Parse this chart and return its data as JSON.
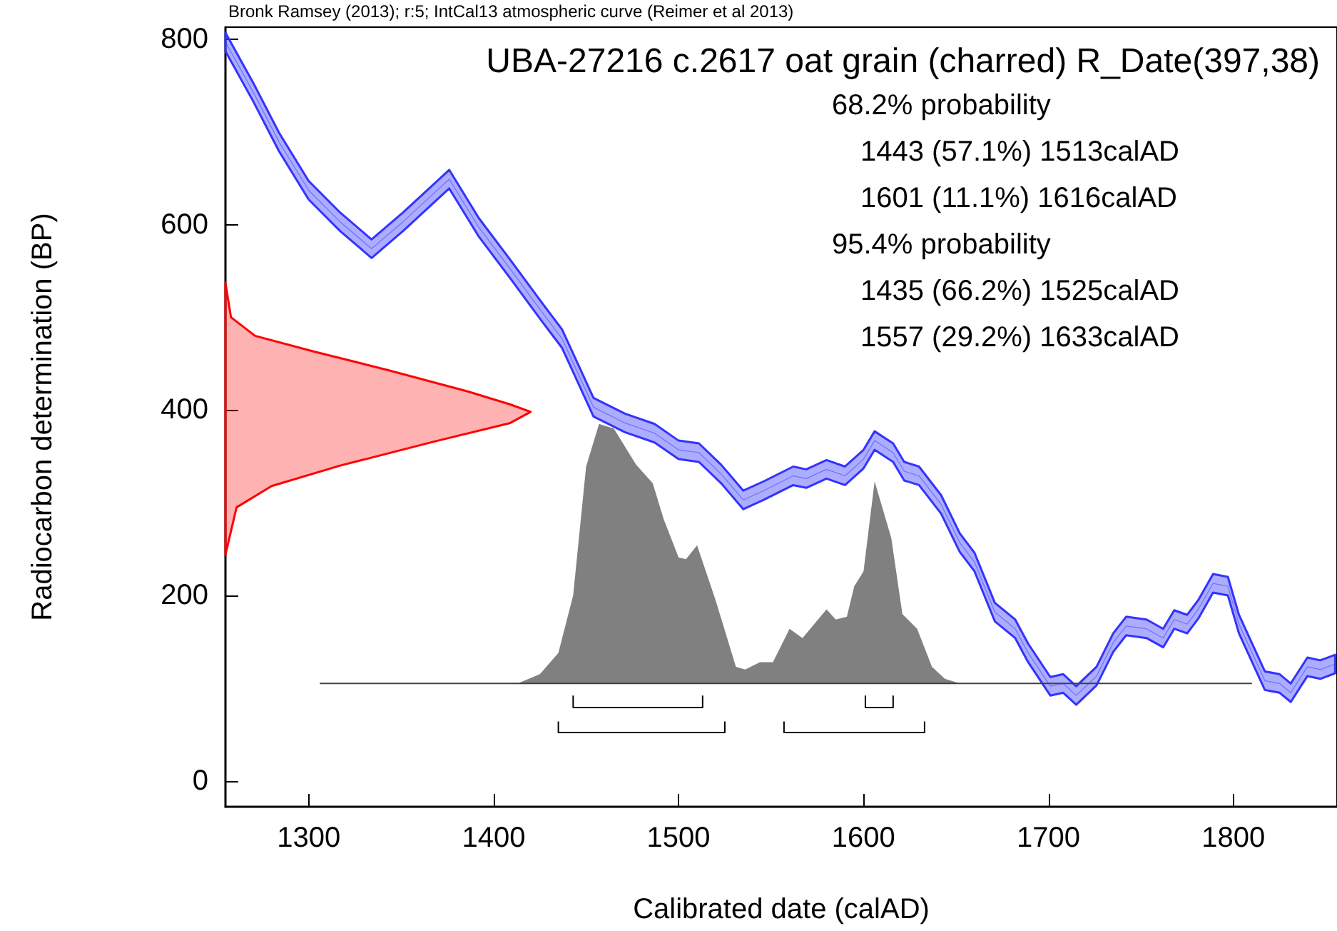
{
  "chart_data": {
    "type": "line",
    "title": "UBA-27216 c.2617 oat grain (charred) R_Date(397,38)",
    "xlabel": "Calibrated date (calAD)",
    "ylabel": "Radiocarbon determination (BP)",
    "annotations": [
      "Bronk Ramsey (2013); r:5; IntCal13 atmospheric curve (Reimer et al 2013)",
      "68.2% probability",
      "1443 (57.1%) 1513calAD",
      "1601 (11.1%) 1616calAD",
      "95.4% probability",
      "1435 (66.2%) 1525calAD",
      "1557 (29.2%) 1633calAD"
    ],
    "xlim": [
      1255,
      1856
    ],
    "xticks": [
      1300,
      1400,
      1500,
      1600,
      1700,
      1800
    ],
    "ylim": [
      -28,
      813
    ],
    "yticks": [
      0,
      200,
      400,
      600,
      800
    ],
    "series": [
      {
        "color": "#3333ff",
        "x": [
          1255,
          1270,
          1284,
          1300,
          1317,
          1334,
          1351,
          1376,
          1392,
          1409,
          1426,
          1437,
          1454,
          1471,
          1487,
          1500,
          1511,
          1523,
          1535,
          1546,
          1562,
          1569,
          1580,
          1590,
          1600,
          1606,
          1616,
          1622,
          1630,
          1642,
          1652,
          1660,
          1671,
          1682,
          1689,
          1701,
          1708,
          1715,
          1726,
          1735,
          1742,
          1753,
          1762,
          1768,
          1775,
          1781,
          1789,
          1797,
          1803,
          1817,
          1825,
          1831,
          1840,
          1847,
          1855
        ],
        "values": [
          797,
          743,
          689,
          637,
          603,
          574,
          603,
          649,
          597,
          552,
          506,
          477,
          403,
          386,
          375,
          357,
          354,
          331,
          303,
          313,
          329,
          326,
          336,
          329,
          347,
          367,
          354,
          334,
          329,
          298,
          257,
          236,
          182,
          164,
          138,
          102,
          105,
          92,
          113,
          149,
          167,
          164,
          154,
          174,
          169,
          185,
          213,
          210,
          169,
          108,
          105,
          95,
          123,
          120,
          126
        ],
        "lower": [
          787,
          733,
          679,
          627,
          593,
          564,
          593,
          639,
          587,
          542,
          496,
          467,
          393,
          376,
          365,
          347,
          344,
          321,
          293,
          303,
          319,
          316,
          326,
          319,
          337,
          357,
          344,
          324,
          319,
          288,
          247,
          226,
          172,
          154,
          128,
          92,
          95,
          82,
          103,
          139,
          157,
          154,
          144,
          164,
          159,
          175,
          203,
          200,
          159,
          98,
          95,
          85,
          113,
          110,
          116
        ],
        "upper": [
          807,
          753,
          699,
          647,
          613,
          584,
          613,
          659,
          607,
          562,
          516,
          487,
          413,
          396,
          385,
          367,
          364,
          341,
          313,
          323,
          339,
          336,
          346,
          339,
          357,
          377,
          364,
          344,
          339,
          308,
          267,
          246,
          192,
          174,
          148,
          112,
          115,
          102,
          123,
          159,
          177,
          174,
          164,
          184,
          179,
          195,
          223,
          220,
          179,
          118,
          115,
          105,
          133,
          130,
          136
        ]
      },
      {
        "type": "area",
        "color": "#ff0000",
        "x": [
          1255,
          1258,
          1271,
          1303,
          1343,
          1386,
          1409,
          1420,
          1409,
          1368,
          1317,
          1280,
          1261,
          1255
        ],
        "values": [
          537,
          500,
          480,
          463,
          443,
          420,
          406,
          398,
          386,
          366,
          340,
          318,
          295,
          244
        ]
      },
      {
        "type": "area",
        "color": "#808080",
        "x": [
          1413,
          1425,
          1435,
          1443,
          1450,
          1457,
          1465,
          1477,
          1486,
          1492,
          1500,
          1504,
          1510,
          1520,
          1531,
          1536,
          1544,
          1551,
          1560,
          1567,
          1580,
          1585,
          1591,
          1595,
          1600,
          1606,
          1615,
          1621,
          1629,
          1637,
          1644,
          1652
        ],
        "values": [
          105,
          115,
          138,
          200,
          339,
          385,
          380,
          341,
          321,
          282,
          241,
          239,
          254,
          195,
          123,
          120,
          128,
          128,
          164,
          154,
          185,
          174,
          177,
          210,
          226,
          323,
          262,
          180,
          164,
          123,
          110,
          105
        ]
      },
      {
        "color": "#404040",
        "x": [
          1306,
          1810
        ],
        "values": [
          105,
          105
        ]
      },
      {
        "color": "#000000",
        "x": [
          1443,
          1443,
          1513,
          1513
        ],
        "values": [
          92,
          79,
          79,
          92
        ]
      },
      {
        "color": "#000000",
        "x": [
          1601,
          1601,
          1616,
          1616
        ],
        "values": [
          92,
          79,
          79,
          92
        ]
      },
      {
        "color": "#000000",
        "x": [
          1435,
          1435,
          1525,
          1525
        ],
        "values": [
          64,
          52,
          52,
          64
        ]
      },
      {
        "color": "#000000",
        "x": [
          1557,
          1557,
          1633,
          1633
        ],
        "values": [
          64,
          52,
          52,
          64
        ]
      }
    ]
  }
}
